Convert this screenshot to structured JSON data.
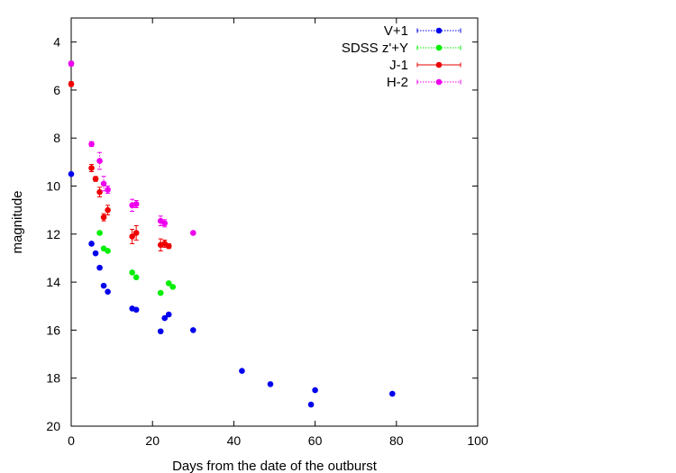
{
  "chart_data": {
    "type": "scatter",
    "title": "",
    "xlabel": "Days from the date of the outburst",
    "ylabel": "magnitude",
    "xlim": [
      0,
      100
    ],
    "ylim": [
      20,
      3
    ],
    "y_inverted": true,
    "xticks": [
      "0",
      "20",
      "40",
      "60",
      "80",
      "100"
    ],
    "yticks": [
      "4",
      "6",
      "8",
      "10",
      "12",
      "14",
      "16",
      "18",
      "20"
    ],
    "grid": false,
    "legend_position": "top-right",
    "series": [
      {
        "name": "V+1",
        "color": "#0000ee",
        "line_style": "dotted",
        "points": [
          {
            "x": 0,
            "y": 9.5
          },
          {
            "x": 5,
            "y": 12.4
          },
          {
            "x": 6,
            "y": 12.8
          },
          {
            "x": 7,
            "y": 13.4
          },
          {
            "x": 8,
            "y": 14.15
          },
          {
            "x": 9,
            "y": 14.4
          },
          {
            "x": 15,
            "y": 15.1
          },
          {
            "x": 16,
            "y": 15.15
          },
          {
            "x": 22,
            "y": 16.05
          },
          {
            "x": 23,
            "y": 15.5
          },
          {
            "x": 24,
            "y": 15.35
          },
          {
            "x": 30,
            "y": 16.0
          },
          {
            "x": 42,
            "y": 17.7
          },
          {
            "x": 49,
            "y": 18.25
          },
          {
            "x": 59,
            "y": 19.1
          },
          {
            "x": 60,
            "y": 18.5
          },
          {
            "x": 79,
            "y": 18.65
          }
        ]
      },
      {
        "name": "SDSS z'+Y",
        "color": "#00ee00",
        "line_style": "dotted",
        "points": [
          {
            "x": 7,
            "y": 11.95
          },
          {
            "x": 8,
            "y": 12.6
          },
          {
            "x": 9,
            "y": 12.7
          },
          {
            "x": 15,
            "y": 13.6
          },
          {
            "x": 16,
            "y": 13.8
          },
          {
            "x": 22,
            "y": 14.45
          },
          {
            "x": 24,
            "y": 14.05
          },
          {
            "x": 25,
            "y": 14.2
          }
        ]
      },
      {
        "name": "J-1",
        "color": "#ee0000",
        "line_style": "solid",
        "points": [
          {
            "x": 0,
            "y": 5.75,
            "err": 0.1
          },
          {
            "x": 5,
            "y": 9.25,
            "err": 0.15
          },
          {
            "x": 6,
            "y": 9.7,
            "err": 0.1
          },
          {
            "x": 7,
            "y": 10.25,
            "err": 0.2
          },
          {
            "x": 8,
            "y": 11.3,
            "err": 0.15
          },
          {
            "x": 9,
            "y": 11.0,
            "err": 0.2
          },
          {
            "x": 15,
            "y": 12.1,
            "err": 0.3
          },
          {
            "x": 16,
            "y": 11.95,
            "err": 0.3
          },
          {
            "x": 22,
            "y": 12.45,
            "err": 0.25
          },
          {
            "x": 23,
            "y": 12.4,
            "err": 0.15
          },
          {
            "x": 24,
            "y": 12.5,
            "err": 0.1
          }
        ]
      },
      {
        "name": "H-2",
        "color": "#ee00ee",
        "line_style": "dotted",
        "points": [
          {
            "x": 0,
            "y": 4.9,
            "err": 0.1
          },
          {
            "x": 5,
            "y": 8.25,
            "err": 0.1
          },
          {
            "x": 7,
            "y": 8.95,
            "err": 0.35
          },
          {
            "x": 8,
            "y": 9.9,
            "err": 0.3
          },
          {
            "x": 9,
            "y": 10.15,
            "err": 0.15
          },
          {
            "x": 15,
            "y": 10.8,
            "err": 0.25
          },
          {
            "x": 16,
            "y": 10.75,
            "err": 0.15
          },
          {
            "x": 22,
            "y": 11.45,
            "err": 0.2
          },
          {
            "x": 23,
            "y": 11.55,
            "err": 0.15
          },
          {
            "x": 30,
            "y": 11.95,
            "err": 0.05
          }
        ]
      }
    ]
  }
}
